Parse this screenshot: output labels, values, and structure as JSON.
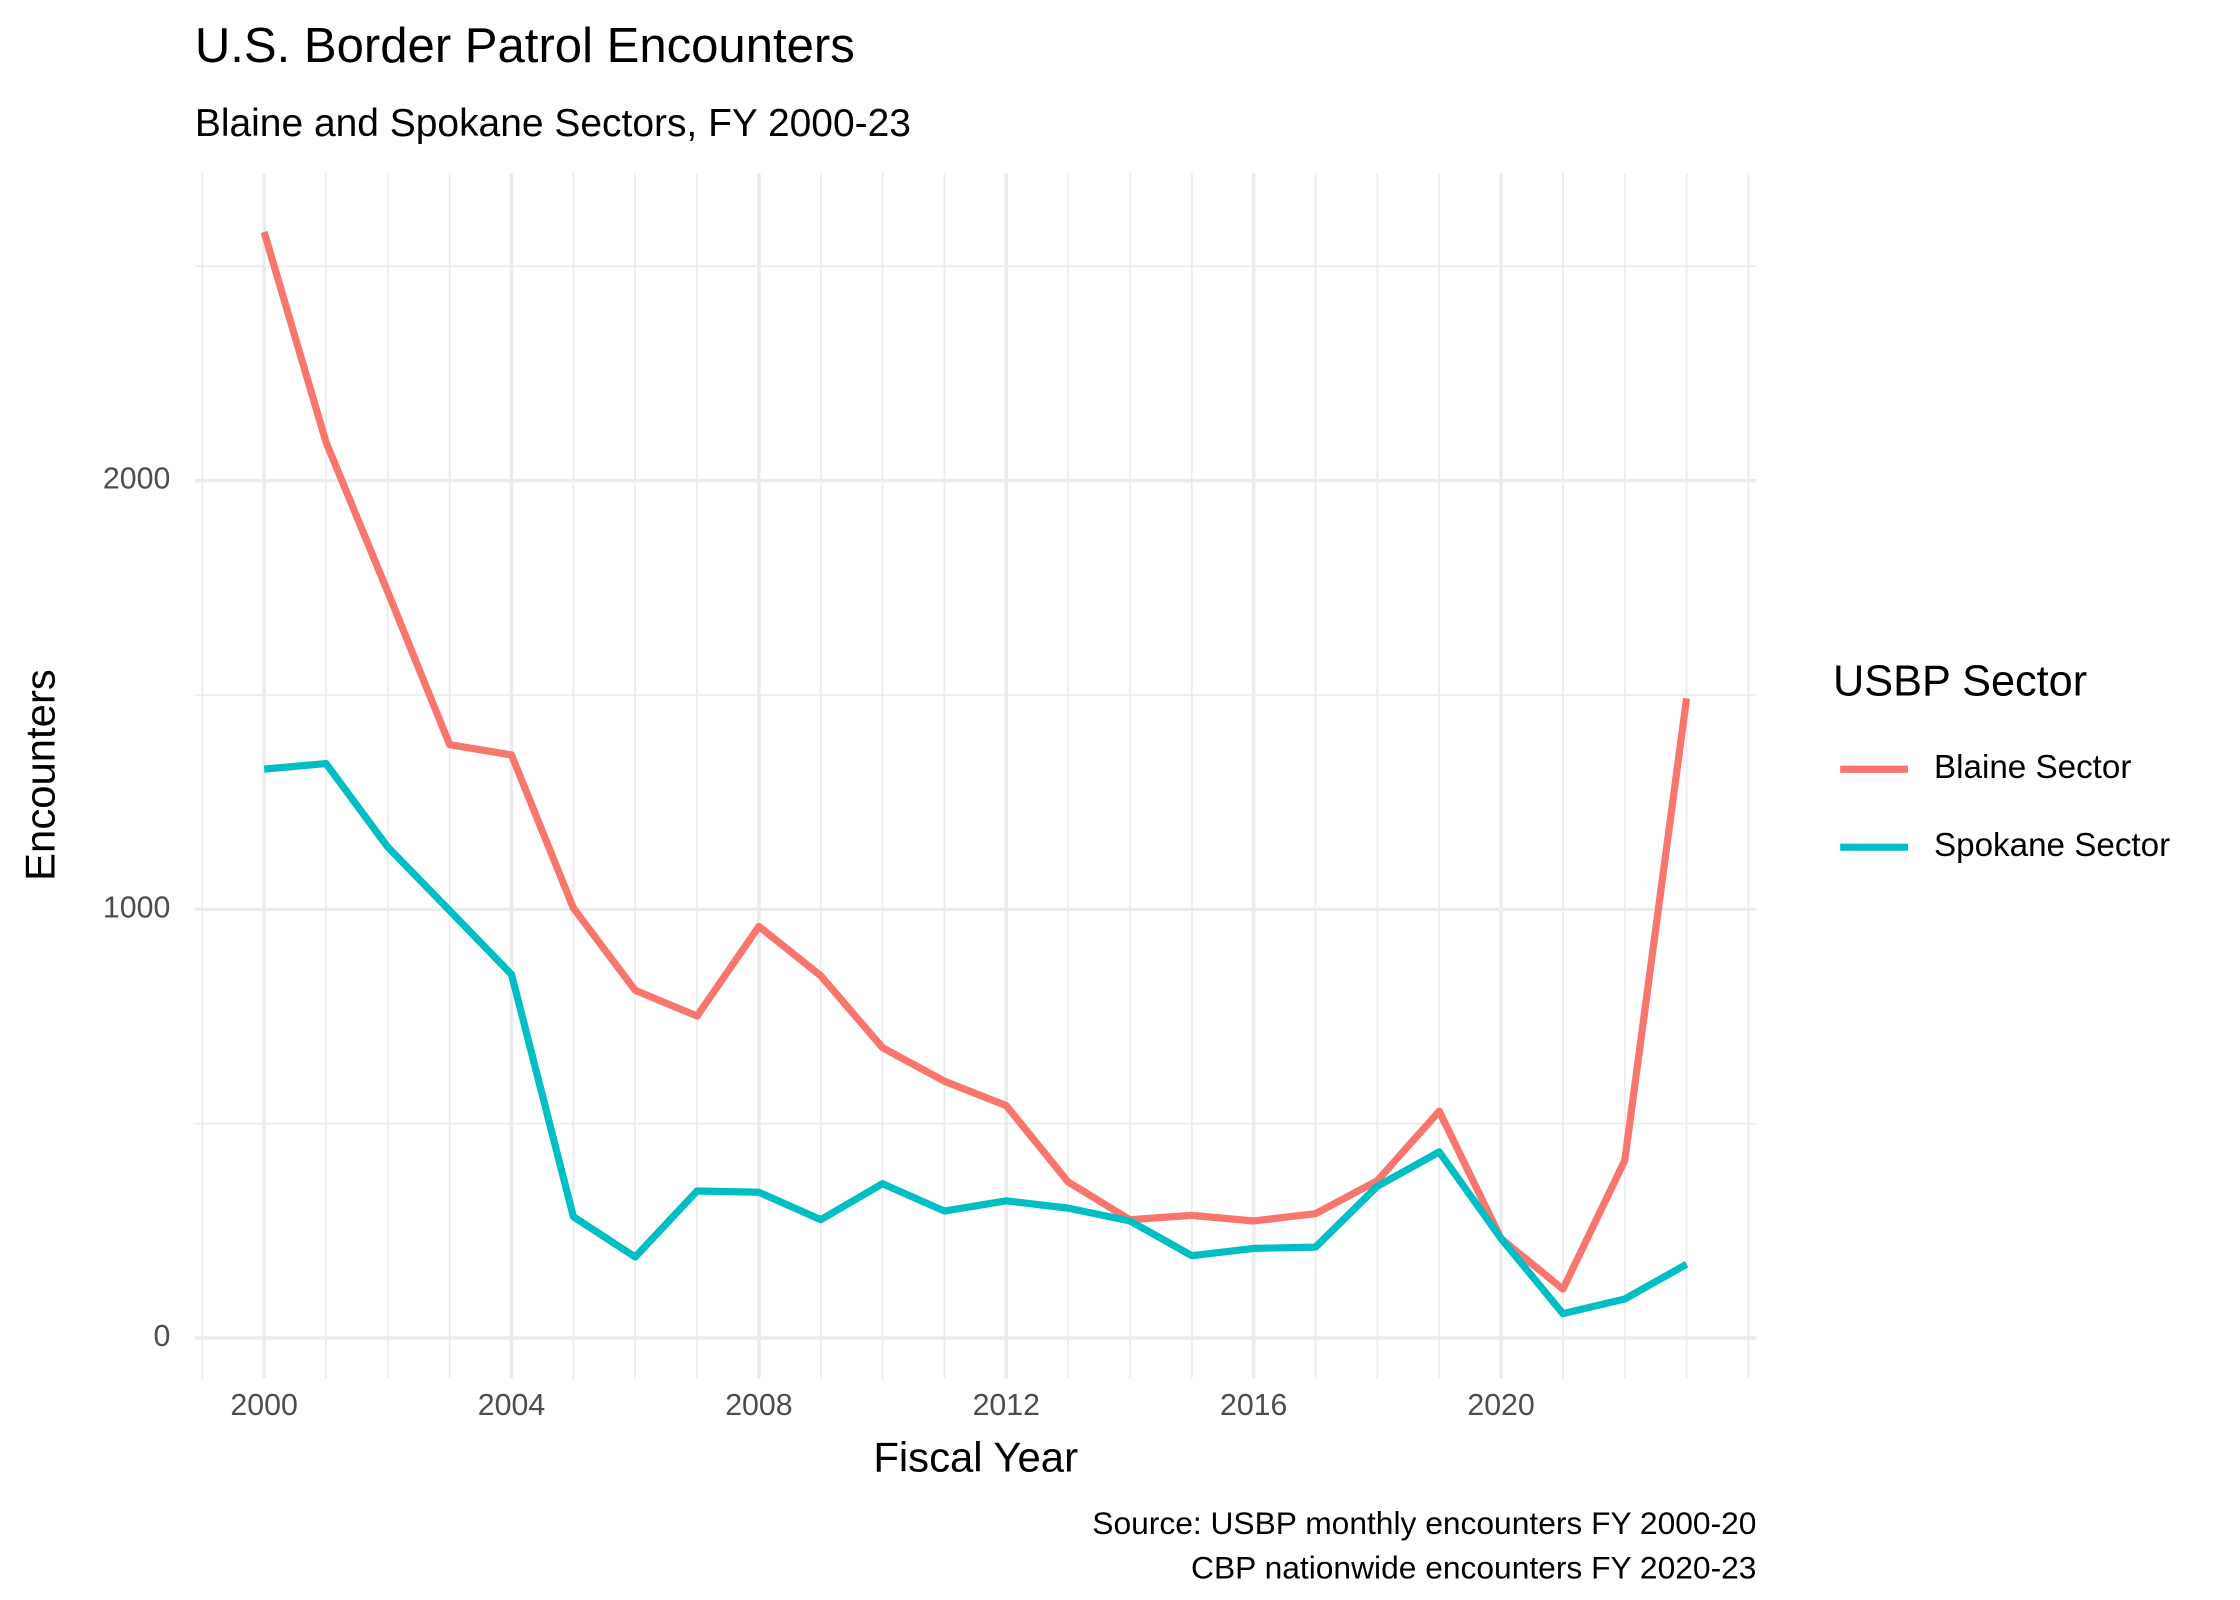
{
  "chart_data": {
    "type": "line",
    "title": "U.S. Border Patrol Encounters",
    "subtitle": "Blaine and Spokane Sectors, FY 2000-23",
    "x_label": "Fiscal Year",
    "y_label": "Encounters",
    "caption": [
      "Source: USBP monthly encounters FY 2000-20",
      "CBP nationwide encounters FY 2020-23"
    ],
    "legend_title": "USBP Sector",
    "legend": "right",
    "grid": true,
    "x": [
      2000,
      2001,
      2002,
      2003,
      2004,
      2005,
      2006,
      2007,
      2008,
      2009,
      2010,
      2011,
      2012,
      2013,
      2014,
      2015,
      2016,
      2017,
      2018,
      2019,
      2020,
      2021,
      2022,
      2023
    ],
    "series": [
      {
        "name": "Blaine Sector",
        "color": "#f8766d",
        "values": [
          2580,
          2090,
          1740,
          1384,
          1360,
          1003,
          811,
          751,
          960,
          845,
          677,
          599,
          542,
          364,
          276,
          286,
          273,
          290,
          367,
          529,
          232,
          114,
          414,
          1492
        ]
      },
      {
        "name": "Spokane Sector",
        "color": "#00bfc4",
        "values": [
          1327,
          1340,
          1145,
          997,
          848,
          283,
          189,
          343,
          340,
          276,
          360,
          296,
          320,
          303,
          273,
          192,
          209,
          212,
          354,
          434,
          232,
          57,
          91,
          172
        ]
      }
    ],
    "xlim": [
      1998.88,
      2024.13
    ],
    "xticks": [
      2000,
      2004,
      2008,
      2012,
      2016,
      2020
    ],
    "ylim": [
      -94,
      2717
    ],
    "yticks": [
      0,
      1000,
      2000
    ]
  }
}
